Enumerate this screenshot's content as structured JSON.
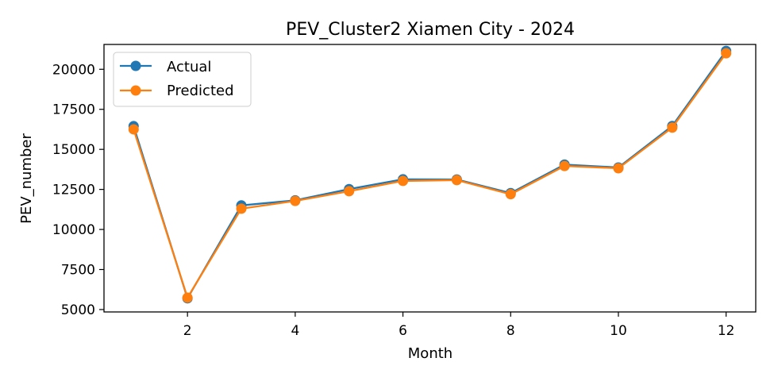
{
  "chart_data": {
    "type": "line",
    "title": "PEV_Cluster2 Xiamen City - 2024",
    "xlabel": "Month",
    "ylabel": "PEV_number",
    "x": [
      1,
      2,
      3,
      4,
      5,
      6,
      7,
      8,
      9,
      10,
      11,
      12
    ],
    "xlim": [
      0.45,
      12.55
    ],
    "ylim": [
      4850,
      21550
    ],
    "xticks": [
      2,
      4,
      6,
      8,
      10,
      12
    ],
    "yticks": [
      5000,
      7500,
      10000,
      12500,
      15000,
      17500,
      20000
    ],
    "grid": false,
    "legend_position": "upper-left",
    "series": [
      {
        "name": "Actual",
        "color": "#1f77b4",
        "marker": "circle",
        "values": [
          16450,
          5700,
          11500,
          11820,
          12520,
          13130,
          13120,
          12270,
          14050,
          13870,
          16460,
          21150
        ]
      },
      {
        "name": "Predicted",
        "color": "#ff7f0e",
        "marker": "circle",
        "values": [
          16250,
          5740,
          11300,
          11780,
          12390,
          13030,
          13080,
          12200,
          13960,
          13820,
          16360,
          21000
        ]
      }
    ]
  }
}
